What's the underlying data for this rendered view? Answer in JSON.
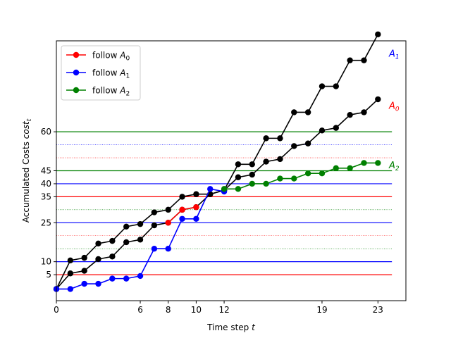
{
  "chart_data": {
    "type": "line",
    "xlabel": "Time step t",
    "ylabel": "Accumulated Costs cost_t",
    "xlim": [
      0,
      25
    ],
    "ylim": [
      -5,
      95
    ],
    "xticks": [
      0,
      6,
      8,
      10,
      12,
      19,
      23
    ],
    "yticks": [
      5,
      10,
      25,
      35,
      40,
      45,
      60
    ],
    "legend_position": "top-left",
    "legend": [
      {
        "label": "follow A_0",
        "color": "#ff0000"
      },
      {
        "label": "follow A_1",
        "color": "#0000ff"
      },
      {
        "label": "follow A_2",
        "color": "#008000"
      }
    ],
    "end_labels": [
      {
        "text": "A_1",
        "color": "#0000ff",
        "y": 90
      },
      {
        "text": "A_0",
        "color": "#ff0000",
        "y": 70
      },
      {
        "text": "A_2",
        "color": "#008000",
        "y": 47
      }
    ],
    "hlines": [
      {
        "y": 5,
        "color": "#ff0000",
        "style": "solid"
      },
      {
        "y": 10,
        "color": "#0000ff",
        "style": "solid"
      },
      {
        "y": 15,
        "color": "#008000",
        "style": "dotted"
      },
      {
        "y": 20,
        "color": "#ff0000",
        "style": "dotted"
      },
      {
        "y": 25,
        "color": "#0000ff",
        "style": "solid"
      },
      {
        "y": 30,
        "color": "#008000",
        "style": "dotted"
      },
      {
        "y": 35,
        "color": "#ff0000",
        "style": "solid"
      },
      {
        "y": 40,
        "color": "#0000ff",
        "style": "solid"
      },
      {
        "y": 45,
        "color": "#008000",
        "style": "solid"
      },
      {
        "y": 50,
        "color": "#ff0000",
        "style": "dotted"
      },
      {
        "y": 55,
        "color": "#0000ff",
        "style": "dotted"
      },
      {
        "y": 60,
        "color": "#008000",
        "style": "solid"
      }
    ],
    "series": [
      {
        "name": "A_1",
        "color": "#000000",
        "x": [
          0,
          1,
          2,
          3,
          4,
          5,
          6,
          7,
          8,
          9,
          10,
          11,
          12,
          13,
          14,
          15,
          16,
          17,
          18,
          19,
          20,
          21,
          22,
          23
        ],
        "y": [
          -0.5,
          10.5,
          11.5,
          17,
          18,
          23.5,
          24.5,
          29,
          30,
          35,
          36,
          36,
          37.5,
          47.5,
          47.5,
          57.5,
          57.5,
          67.5,
          67.5,
          77.5,
          77.5,
          87.5,
          87.5,
          97.5
        ]
      },
      {
        "name": "A_0",
        "color": "#000000",
        "x": [
          0,
          1,
          2,
          3,
          4,
          5,
          6,
          7,
          8,
          9,
          10,
          11,
          12,
          13,
          14,
          15,
          16,
          17,
          18,
          19,
          20,
          21,
          22,
          23
        ],
        "y": [
          -0.5,
          5.5,
          6.5,
          11,
          12,
          17.5,
          18.5,
          24,
          25,
          30,
          31,
          36,
          37.5,
          42.5,
          43.5,
          48.5,
          49.5,
          54.5,
          55.5,
          60.5,
          61.5,
          66.5,
          67.5,
          72.5
        ]
      },
      {
        "name": "follow A_1",
        "color": "#0000ff",
        "x": [
          0,
          1,
          2,
          3,
          4,
          5,
          6,
          7,
          8,
          9,
          10,
          11,
          12
        ],
        "y": [
          -0.5,
          -0.5,
          1.5,
          1.5,
          3.5,
          3.5,
          4.5,
          15,
          15,
          26.5,
          26.5,
          38,
          37
        ]
      },
      {
        "name": "follow A_0",
        "color": "#ff0000",
        "x": [
          8,
          9,
          10
        ],
        "y": [
          25,
          30,
          31
        ]
      },
      {
        "name": "follow A_2",
        "color": "#008000",
        "x": [
          12,
          13,
          14,
          15,
          16,
          17,
          18,
          19,
          20,
          21,
          22,
          23
        ],
        "y": [
          38,
          38,
          40,
          40,
          42,
          42,
          44,
          44,
          46,
          46,
          48,
          48
        ]
      }
    ]
  }
}
